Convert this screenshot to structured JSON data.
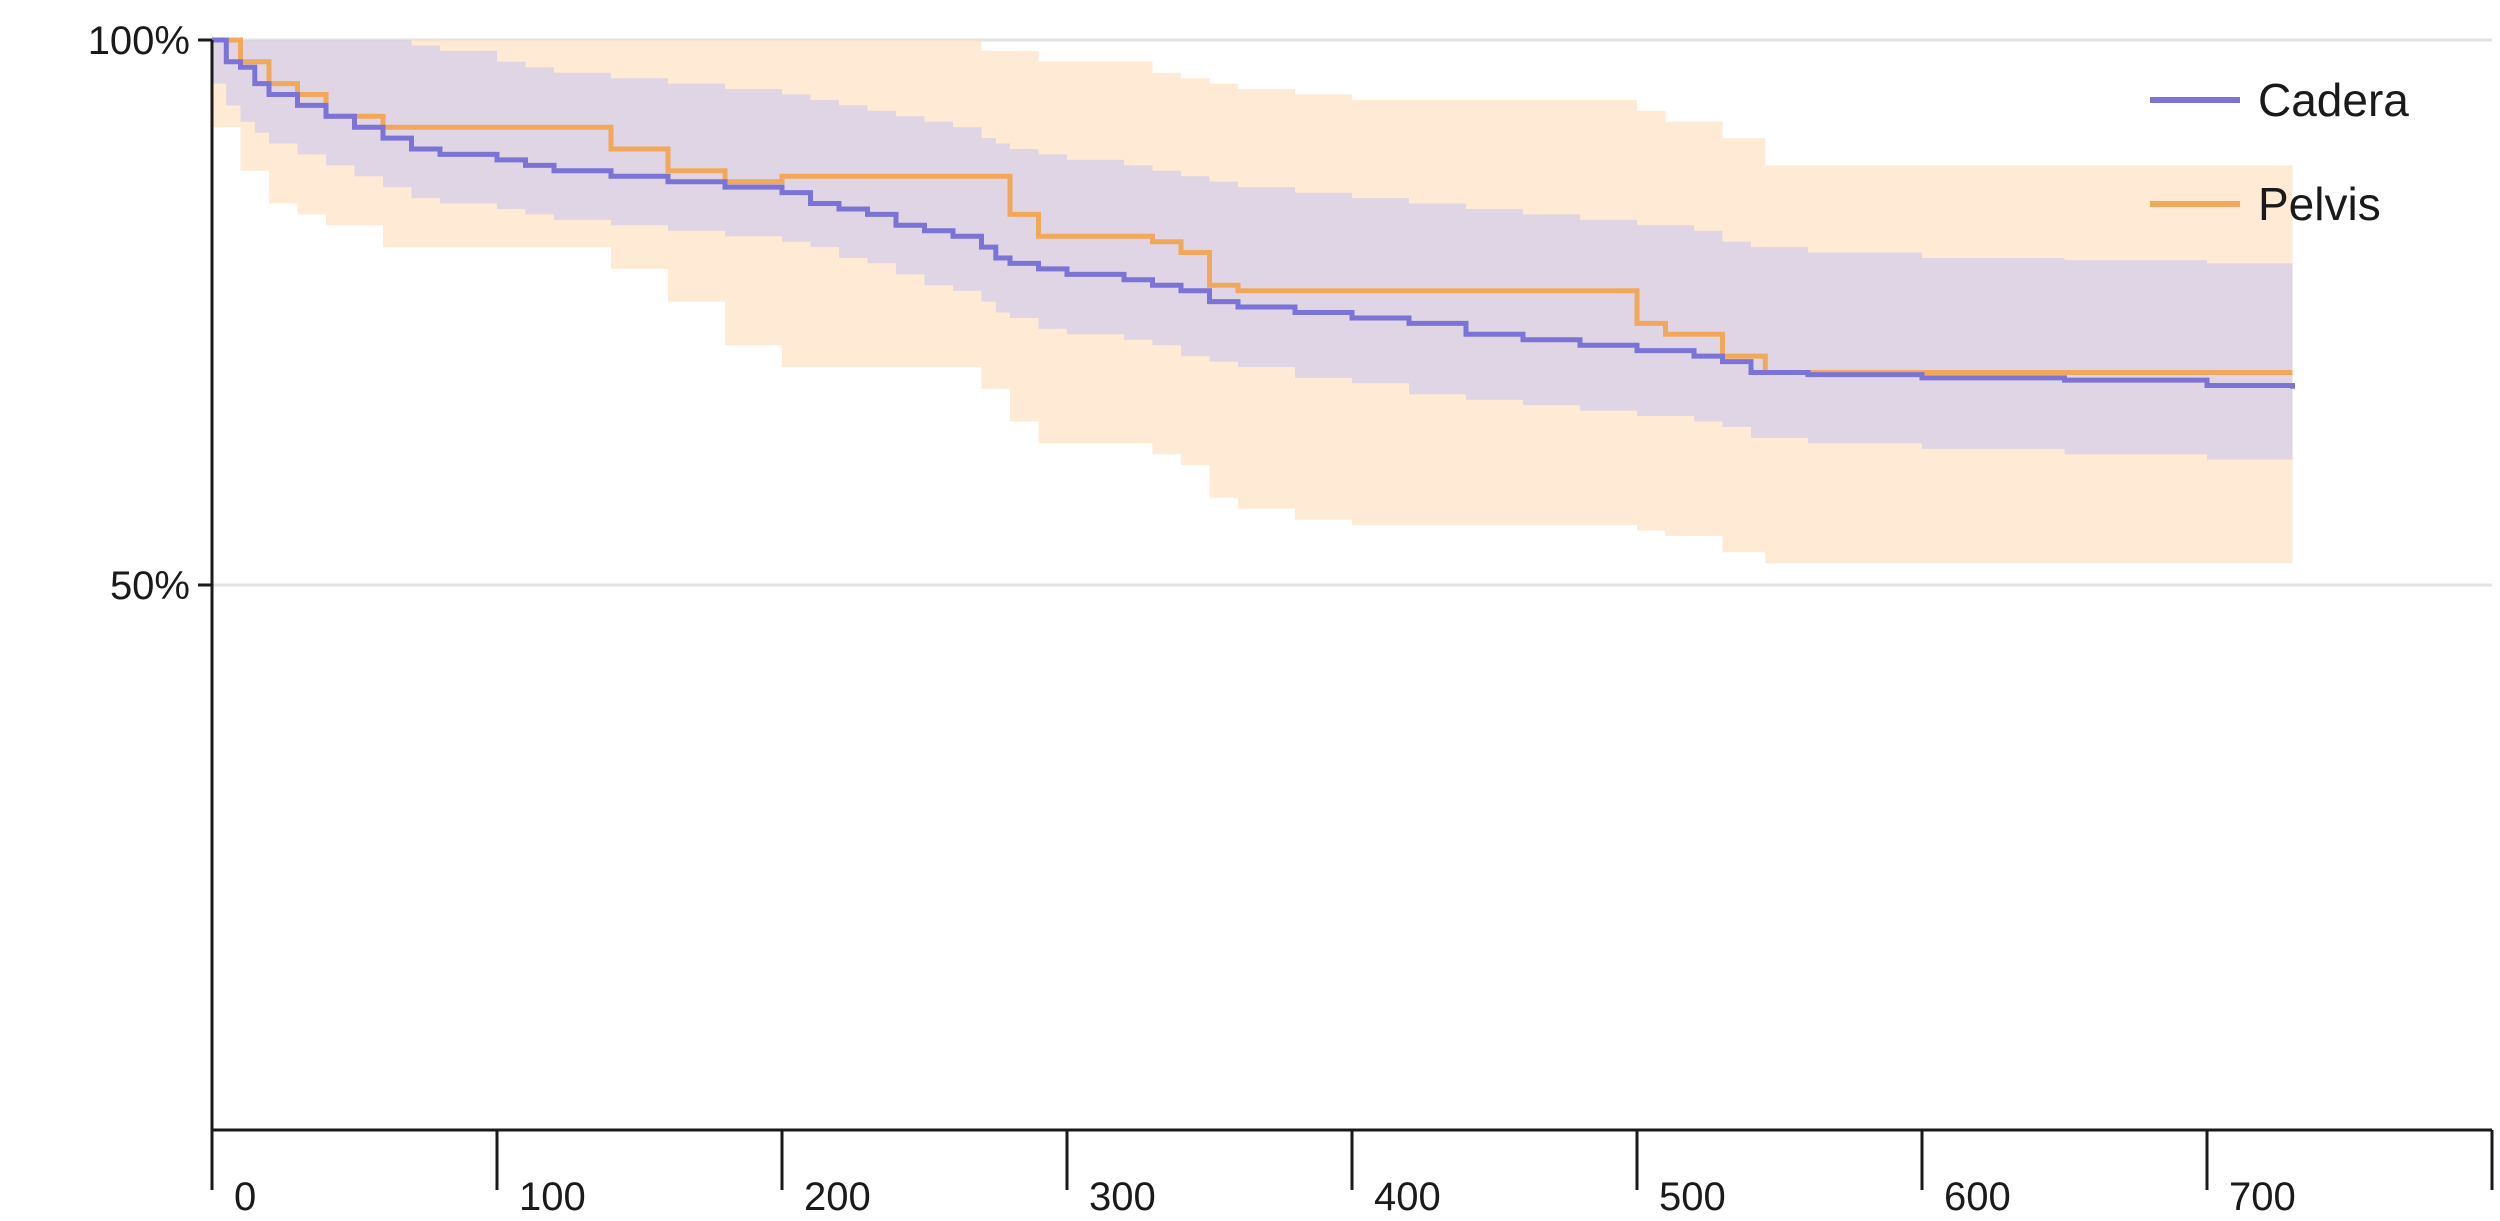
{
  "chart_data": {
    "type": "line",
    "subtype": "kaplan-meier survival (step)",
    "title": "",
    "xlabel": "",
    "ylabel": "",
    "xlim": [
      0,
      800
    ],
    "ylim": [
      0,
      100
    ],
    "x_ticks": [
      0,
      100,
      200,
      300,
      400,
      500,
      600,
      700
    ],
    "x_tick_labels": [
      "0",
      "100",
      "200",
      "300",
      "400",
      "500",
      "600",
      "700"
    ],
    "y_ticks": [
      100,
      50
    ],
    "y_tick_labels": [
      "100%",
      "50%"
    ],
    "grid": "horizontal",
    "legend": {
      "placement": "top-right",
      "entries": [
        "Cadera",
        "Pelvis"
      ]
    },
    "series": [
      {
        "name": "Cadera",
        "color": "#7b74d6",
        "band_color": "#c9c7ef",
        "x": [
          0,
          5,
          10,
          15,
          20,
          30,
          40,
          50,
          60,
          70,
          80,
          100,
          110,
          120,
          140,
          160,
          180,
          200,
          210,
          220,
          230,
          240,
          250,
          260,
          270,
          275,
          280,
          290,
          300,
          320,
          330,
          340,
          350,
          360,
          380,
          400,
          420,
          440,
          460,
          480,
          500,
          520,
          530,
          540,
          560,
          600,
          650,
          700,
          730
        ],
        "y": [
          100,
          98,
          97.5,
          96,
          95,
          94,
          93,
          92,
          91,
          90,
          89.5,
          89,
          88.5,
          88,
          87.5,
          87,
          86.5,
          86,
          85,
          84.5,
          84,
          83,
          82.5,
          82,
          81,
          80,
          79.5,
          79,
          78.5,
          78,
          77.5,
          77,
          76,
          75.5,
          75,
          74.5,
          74,
          73,
          72.5,
          72,
          71.5,
          71,
          70.5,
          69.5,
          69.3,
          69,
          68.8,
          68.3,
          68
        ],
        "upper": [
          100,
          100,
          100,
          100,
          100,
          100,
          100,
          100,
          100,
          99.5,
          99,
          98,
          97.5,
          97,
          96.5,
          96,
          95.5,
          95,
          94.5,
          94,
          93.5,
          93,
          92.5,
          92,
          91,
          90.5,
          90,
          89.5,
          89,
          88.5,
          88,
          87.5,
          87,
          86.5,
          86,
          85.5,
          85,
          84.5,
          84,
          83.5,
          83,
          82.5,
          81.5,
          81,
          80.5,
          80,
          79.8,
          79.5,
          79.5
        ],
        "lower": [
          96,
          94,
          92.5,
          91.5,
          90.5,
          89.5,
          88.5,
          87.5,
          86.5,
          85.5,
          85,
          84.5,
          84,
          83.5,
          83,
          82.5,
          82,
          81.5,
          81,
          80,
          79.5,
          78.5,
          77.5,
          77,
          76,
          75,
          74.5,
          73.5,
          73,
          72.5,
          72,
          71,
          70.5,
          70,
          69,
          68.5,
          67.5,
          67,
          66.5,
          66,
          65.5,
          65,
          64.5,
          63.5,
          63,
          62.5,
          62,
          61.5,
          61.5
        ]
      },
      {
        "name": "Pelvis",
        "color": "#f2a85a",
        "band_color": "#fde3c7",
        "x": [
          0,
          10,
          20,
          30,
          40,
          60,
          140,
          160,
          180,
          200,
          270,
          280,
          290,
          330,
          340,
          350,
          360,
          380,
          400,
          500,
          510,
          530,
          545,
          730
        ],
        "y": [
          100,
          98,
          96,
          95,
          93,
          92,
          90,
          88,
          87,
          87.5,
          87.5,
          84,
          82,
          81.5,
          80.5,
          77.5,
          77,
          77,
          77,
          74,
          73,
          71,
          69.5,
          69.5
        ],
        "upper": [
          100,
          100,
          100,
          100,
          100,
          100,
          100,
          100,
          100,
          100,
          99,
          99,
          98,
          97,
          96.5,
          96,
          95.5,
          95,
          94.5,
          93.5,
          92.5,
          91,
          88.5,
          88.5
        ],
        "lower": [
          92,
          88,
          85,
          84,
          83,
          81,
          79,
          76,
          72,
          70,
          68,
          65,
          63,
          62,
          61,
          58,
          57,
          56,
          55.5,
          55,
          54.5,
          53,
          52,
          52
        ]
      }
    ]
  }
}
